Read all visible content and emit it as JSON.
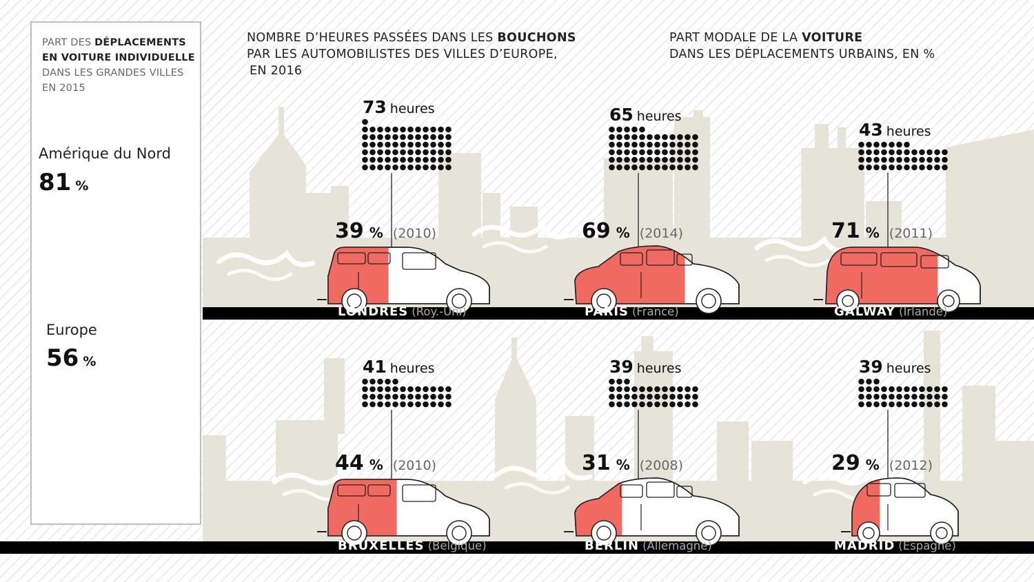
{
  "left_panel": {
    "title_lines": [
      {
        "a": "PART DES ",
        "b": "DÉPLACEMENTS"
      },
      {
        "a": "",
        "b": "EN VOITURE INDIVIDUELLE"
      },
      {
        "a": "DANS LES GRANDES VILLES",
        "b": ""
      },
      {
        "a": "EN 2015",
        "b": ""
      }
    ],
    "regions": [
      {
        "name": "Amérique du Nord",
        "value": "81",
        "unit": "%"
      },
      {
        "name": "Europe",
        "value": "56",
        "unit": "%"
      }
    ]
  },
  "legend": {
    "hours": {
      "line1_a": "NOMBRE D’HEURES PASSÉES DANS LES ",
      "line1_b": "BOUCHONS",
      "line2": "PAR LES AUTOMOBILISTES DES VILLES D’EUROPE,",
      "line3": "EN 2016"
    },
    "share": {
      "line1_a": "PART MODALE DE LA ",
      "line1_b": "VOITURE",
      "line2": "DANS LES DÉPLACEMENTS URBAINS, EN %"
    }
  },
  "labels": {
    "hours_unit": "heures",
    "pct_unit": "%"
  },
  "colors": {
    "accent": "#f06a62",
    "skyline": "#e6e3d8",
    "road": "#000000",
    "dots": "#111111",
    "panel_border": "#bdbdbd"
  },
  "chart_data": {
    "type": "pictogram",
    "series": [
      {
        "name": "hours_in_traffic_2016",
        "unit": "heures"
      },
      {
        "name": "car_modal_share",
        "unit": "%"
      }
    ],
    "cities": [
      {
        "city": "LONDRES",
        "country": "(Roy.-Uni)",
        "hours": 73,
        "share": 39,
        "year": "(2010)",
        "car": "hatch"
      },
      {
        "city": "PARIS",
        "country": "(France)",
        "hours": 65,
        "share": 69,
        "year": "(2014)",
        "car": "sedan"
      },
      {
        "city": "GALWAY",
        "country": "(Irlande)",
        "hours": 43,
        "share": 71,
        "year": "(2011)",
        "car": "mpv"
      },
      {
        "city": "BRUXELLES",
        "country": "(Belgique)",
        "hours": 41,
        "share": 44,
        "year": "(2010)",
        "car": "hatch"
      },
      {
        "city": "BERLIN",
        "country": "(Allemagne)",
        "hours": 39,
        "share": 31,
        "year": "(2008)",
        "car": "sedan"
      },
      {
        "city": "MADRID",
        "country": "(Espagne)",
        "hours": 39,
        "share": 29,
        "year": "(2012)",
        "car": "small"
      }
    ],
    "regions": [
      {
        "name": "Amérique du Nord",
        "share": 81
      },
      {
        "name": "Europe",
        "share": 56
      }
    ]
  }
}
